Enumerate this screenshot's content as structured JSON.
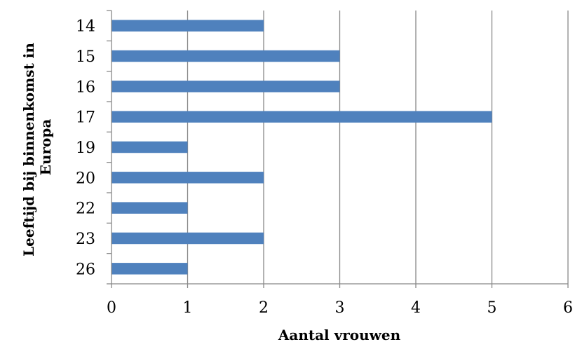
{
  "chart_data": {
    "type": "bar",
    "orientation": "horizontal",
    "categories": [
      "14",
      "15",
      "16",
      "17",
      "19",
      "20",
      "22",
      "23",
      "26"
    ],
    "values": [
      2,
      3,
      3,
      5,
      1,
      2,
      1,
      2,
      1
    ],
    "xlim": [
      0,
      6
    ],
    "x_ticks": [
      "0",
      "1",
      "2",
      "3",
      "4",
      "5",
      "6"
    ],
    "xlabel": "Aantal vrouwen",
    "ylabel_lines": [
      "Leeftijd bij binnenkomst in",
      "Europa"
    ],
    "grid": "vertical",
    "bar_color": "#4F81BD"
  }
}
